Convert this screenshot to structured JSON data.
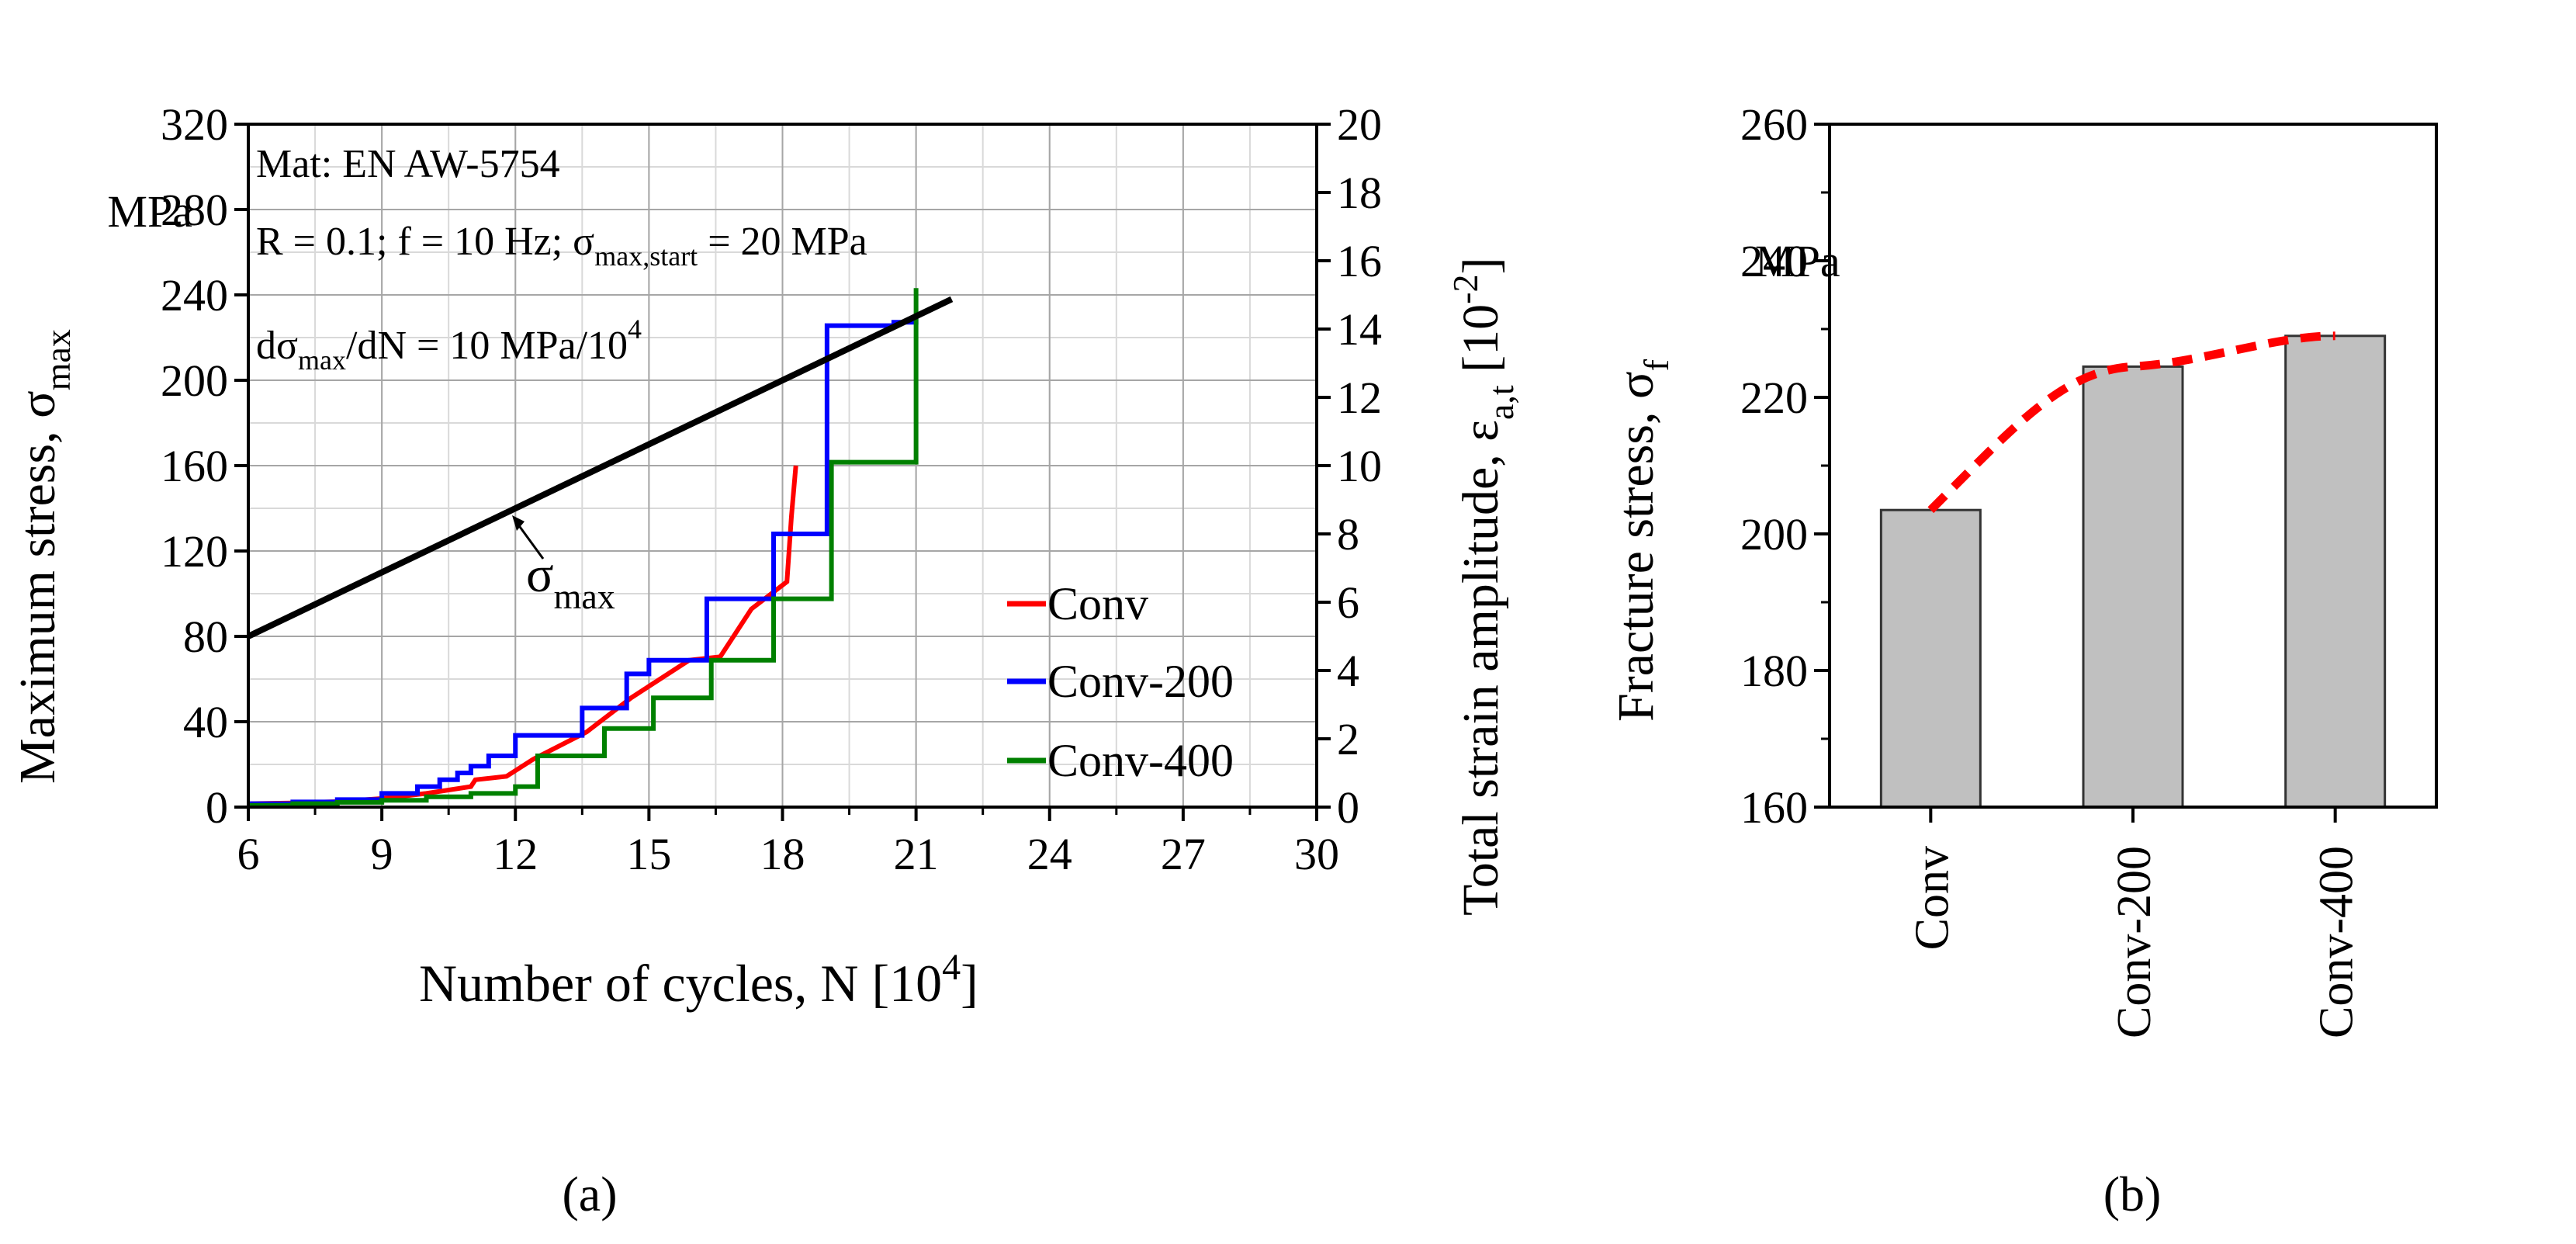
{
  "chart_data": [
    {
      "panel_label": "(a)",
      "type": "line",
      "xlabel": "Number of cycles, N",
      "xlabel_unit": "10",
      "xlabel_unit_exp": "4",
      "ylabel_left_main": "Maximum stress, σ",
      "ylabel_left_sub": "max",
      "ylabel_left_unit": "MPa",
      "ylabel_right_main": "Total strain amplitude, ε",
      "ylabel_right_sub": "a,t",
      "ylabel_right_unit": "10",
      "ylabel_right_unit_exp": "-2",
      "xlim": [
        6,
        30
      ],
      "ylim_left": [
        0,
        320
      ],
      "ylim_right": [
        0,
        20
      ],
      "xticks": [
        "6",
        "9",
        "12",
        "15",
        "18",
        "21",
        "24",
        "27",
        "30"
      ],
      "yticks_left": [
        "0",
        "40",
        "80",
        "120",
        "160",
        "200",
        "240",
        "280",
        "320"
      ],
      "yticks_right": [
        "0",
        "2",
        "4",
        "6",
        "8",
        "10",
        "12",
        "14",
        "16",
        "18",
        "20"
      ],
      "annotations": {
        "material": "Mat: EN AW-5754",
        "cond_a": "R = 0.1; f = 10 Hz; σ",
        "cond_sub": "max,start",
        "cond_b": " = 20 MPa",
        "rate_a": "dσ",
        "rate_sub": "max",
        "rate_b": "/dN = 10 MPa/10",
        "rate_exp": "4",
        "line_label": "σ",
        "line_label_sub": "max"
      },
      "stress_line": {
        "name": "σmax",
        "axis": "left",
        "color": "#000000",
        "x": [
          6,
          21.8
        ],
        "y": [
          80,
          238
        ]
      },
      "series": [
        {
          "name": "Conv",
          "color": "#ff0000",
          "axis": "right",
          "x": [
            6,
            7,
            8,
            9,
            10,
            11,
            11.1,
            11.8,
            12.4,
            13.6,
            14.6,
            15.9,
            16.6,
            17.3,
            18.1,
            18.2,
            18.3
          ],
          "y": [
            0.1,
            0.12,
            0.16,
            0.25,
            0.4,
            0.6,
            0.8,
            0.9,
            1.4,
            2.2,
            3.2,
            4.3,
            4.4,
            5.8,
            6.6,
            8.5,
            10
          ]
        },
        {
          "name": "Conv-200",
          "color": "#0000ff",
          "axis": "right",
          "x": [
            6,
            7,
            8,
            9,
            9.8,
            10.3,
            10.7,
            11.0,
            11.4,
            12.0,
            13.5,
            14.5,
            15.0,
            16.3,
            17.8,
            19.0,
            20.5,
            21.0
          ],
          "y": [
            0.1,
            0.15,
            0.22,
            0.4,
            0.6,
            0.8,
            1.0,
            1.2,
            1.5,
            2.1,
            2.9,
            3.9,
            4.3,
            6.1,
            8.0,
            14.1,
            14.2,
            14.3
          ],
          "step": true
        },
        {
          "name": "Conv-400",
          "color": "#008000",
          "axis": "right",
          "x": [
            6,
            7,
            8,
            9,
            10,
            11,
            12,
            12.5,
            14.0,
            15.1,
            16.4,
            17.8,
            19.1,
            20.9,
            21.0
          ],
          "y": [
            0.05,
            0.1,
            0.14,
            0.2,
            0.3,
            0.4,
            0.6,
            1.5,
            2.3,
            3.2,
            4.3,
            6.1,
            10.1,
            10.1,
            15.2
          ],
          "step": true
        }
      ]
    },
    {
      "panel_label": "(b)",
      "type": "bar",
      "ylabel_main": "Fracture stress, σ",
      "ylabel_sub": "f",
      "ylabel_unit": "MPa",
      "categories": [
        "Conv",
        "Conv-200",
        "Conv-400"
      ],
      "values": [
        203.5,
        224.5,
        229
      ],
      "ylim": [
        160,
        260
      ],
      "yticks": [
        "160",
        "180",
        "200",
        "220",
        "240",
        "260"
      ],
      "bar_color": "#c0c0c0",
      "trend_color": "#ff0000"
    }
  ]
}
